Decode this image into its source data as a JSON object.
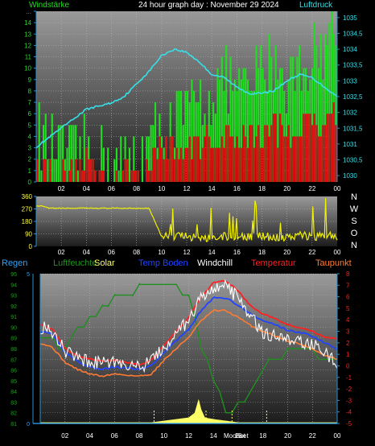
{
  "colors": {
    "background": "#000000",
    "plot_top": "#9a9a9a",
    "plot_bottom": "#1e1e1e",
    "grid": "#b4b4b4",
    "axis": "#2e8fcc",
    "wind_gust": "#22dd22",
    "wind_avg": "#dd1111",
    "pressure": "#36e0e8",
    "wind_dir": "#f0f000",
    "solar": "#ffff66",
    "temperature": "#ff2020",
    "dewpoint": "#ff7a33",
    "windchill": "#ffffff",
    "soil_temp": "#2244ff",
    "humidity": "#1f8f1f",
    "rain": "#2ea6ff"
  },
  "chart_data": [
    {
      "type": "line",
      "title": "24 hour graph day : November 29 2024",
      "ylabel_left": "Windstärke",
      "ylabel_right": "Luftdruck",
      "x_ticks": [
        "02",
        "04",
        "06",
        "08",
        "10",
        "12",
        "14",
        "16",
        "18",
        "20",
        "22",
        "00"
      ],
      "y_left_ticks": [
        "0",
        "1",
        "2",
        "3",
        "4",
        "5",
        "6",
        "7",
        "8",
        "9",
        "10",
        "11",
        "12",
        "13",
        "14",
        "..."
      ],
      "y_right_ticks": [
        "1030",
        "1030,5",
        "1031",
        "1031,5",
        "1032",
        "1032,5",
        "1033",
        "1033,5",
        "1034",
        "1034,5",
        "1035"
      ],
      "ylim_left": [
        0,
        15
      ],
      "ylim_right": [
        1029.8,
        1035.2
      ],
      "series": [
        {
          "key": "pressure",
          "x": [
            0,
            1,
            2,
            3,
            4,
            5,
            6,
            7,
            8,
            9,
            10,
            11,
            12,
            13,
            14,
            15,
            16,
            17,
            18,
            19,
            20,
            21,
            22,
            23,
            24
          ],
          "values": [
            1030.9,
            1031.2,
            1031.5,
            1031.8,
            1032.1,
            1032.2,
            1032.3,
            1032.5,
            1032.9,
            1033.3,
            1033.8,
            1034.0,
            1033.9,
            1033.6,
            1033.2,
            1033.1,
            1032.8,
            1032.6,
            1032.6,
            1032.7,
            1033.0,
            1033.2,
            1033.1,
            1032.8,
            1032.5
          ]
        },
        {
          "key": "wind_gust",
          "x": [
            0,
            1,
            2,
            3,
            4,
            5,
            6,
            7,
            8,
            9,
            10,
            11,
            12,
            13,
            14,
            15,
            16,
            17,
            18,
            19,
            20,
            21,
            22,
            23,
            24
          ],
          "values": [
            5,
            3,
            3,
            2,
            3,
            3,
            2,
            2,
            2,
            3,
            5,
            5,
            6,
            7,
            8,
            9,
            8,
            8,
            10,
            11,
            9,
            10,
            11,
            12,
            14
          ]
        },
        {
          "key": "wind_avg",
          "x": [
            0,
            1,
            2,
            3,
            4,
            5,
            6,
            7,
            8,
            9,
            10,
            11,
            12,
            13,
            14,
            15,
            16,
            17,
            18,
            19,
            20,
            21,
            22,
            23,
            24
          ],
          "values": [
            2,
            1,
            1,
            1,
            2,
            2,
            1,
            1,
            1,
            2,
            3,
            3,
            3,
            3,
            4,
            4,
            4,
            4,
            4,
            5,
            4,
            5,
            5,
            6,
            6
          ]
        }
      ]
    },
    {
      "type": "line",
      "ylabel_right": [
        "N",
        "W",
        "S",
        "O",
        "N"
      ],
      "x_ticks": [
        "02",
        "04",
        "06",
        "08",
        "10",
        "12",
        "14",
        "16",
        "18",
        "20",
        "22",
        "00"
      ],
      "y_ticks": [
        "0",
        "90",
        "180",
        "270",
        "360"
      ],
      "ylim": [
        0,
        360
      ],
      "series": [
        {
          "key": "wind_dir",
          "x": [
            0,
            0.5,
            1,
            2,
            3,
            4,
            5,
            6,
            7,
            8,
            9,
            10,
            11,
            12,
            13,
            14,
            15,
            16,
            17,
            18,
            19,
            20,
            21,
            22,
            23,
            24
          ],
          "values": [
            290,
            290,
            275,
            275,
            275,
            275,
            275,
            275,
            275,
            275,
            275,
            70,
            75,
            70,
            65,
            60,
            70,
            65,
            70,
            75,
            65,
            70,
            80,
            70,
            80,
            75
          ]
        }
      ]
    },
    {
      "type": "line",
      "legend": [
        "Regen",
        "Luftfeuchte",
        "Solar",
        "Temp Boden",
        "Windchill",
        "Temperatur",
        "Taupunkt"
      ],
      "x_ticks": [
        "02",
        "04",
        "06",
        "08",
        "10",
        "12",
        "14",
        "16",
        "18",
        "20",
        "22",
        "00"
      ],
      "x_annotations": [
        "Moonset",
        "Set"
      ],
      "y_left_ticks": [
        "81",
        "82",
        "83",
        "84",
        "85",
        "86",
        "87",
        "88",
        "89",
        "90",
        "91",
        "92",
        "93",
        "94",
        "95"
      ],
      "y_left2_ticks": [
        "0",
        "5"
      ],
      "y_right_ticks": [
        "-5",
        "-4",
        "-3",
        "-2",
        "-1",
        "0",
        "1",
        "2",
        "3",
        "4",
        "5",
        "6",
        "7",
        "8"
      ],
      "ylim_humidity": [
        81,
        95
      ],
      "ylim_temperature": [
        -5,
        8
      ],
      "series": [
        {
          "key": "humidity",
          "x": [
            0,
            1,
            2,
            3,
            4,
            5,
            6,
            7,
            8,
            9,
            10,
            11,
            12,
            13,
            14,
            15,
            16,
            17,
            18,
            19,
            20,
            21,
            22,
            23,
            24
          ],
          "values": [
            89,
            88.5,
            88,
            89.5,
            90.5,
            91.5,
            92.5,
            93,
            93.5,
            94,
            94,
            93.5,
            93,
            88,
            85,
            82,
            82.5,
            84,
            86,
            87,
            87.5,
            88,
            87.5,
            87,
            86.5
          ]
        },
        {
          "key": "temperature",
          "x": [
            0,
            1,
            2,
            3,
            4,
            5,
            6,
            7,
            8,
            9,
            10,
            11,
            12,
            13,
            14,
            15,
            16,
            17,
            18,
            19,
            20,
            21,
            22,
            23,
            24
          ],
          "values": [
            3.6,
            3.2,
            1.5,
            0.9,
            0.6,
            0.4,
            0.5,
            0.3,
            0.1,
            0.5,
            1.8,
            3.0,
            4.2,
            6.0,
            7.2,
            7.4,
            6.5,
            5.2,
            4.5,
            4.1,
            3.6,
            3.3,
            3.0,
            2.5,
            2.3
          ]
        },
        {
          "key": "windchill",
          "x": [
            0,
            1,
            2,
            3,
            4,
            5,
            6,
            7,
            8,
            9,
            10,
            11,
            12,
            13,
            14,
            15,
            16,
            17,
            18,
            19,
            20,
            21,
            22,
            23,
            24
          ],
          "values": [
            3.4,
            3.0,
            1.3,
            0.7,
            0.4,
            0.2,
            0.3,
            0.1,
            -0.1,
            0.3,
            1.6,
            2.8,
            4.0,
            5.8,
            6.9,
            6.8,
            5.9,
            4.2,
            3.0,
            2.6,
            2.3,
            2.1,
            1.9,
            1.2,
            0.3
          ]
        },
        {
          "key": "soil_temp",
          "x": [
            0,
            1,
            2,
            3,
            4,
            5,
            6,
            7,
            8,
            9,
            10,
            11,
            12,
            13,
            14,
            15,
            16,
            17,
            18,
            19,
            20,
            21,
            22,
            23,
            24
          ],
          "values": [
            3.0,
            2.7,
            1.2,
            0.4,
            -0.1,
            -0.3,
            -0.1,
            -0.2,
            -0.3,
            0.0,
            1.2,
            2.2,
            3.2,
            4.8,
            5.9,
            5.9,
            5.3,
            4.5,
            3.9,
            3.6,
            3.1,
            2.9,
            2.6,
            2.0,
            1.5
          ]
        },
        {
          "key": "dewpoint",
          "x": [
            0,
            1,
            2,
            3,
            4,
            5,
            6,
            7,
            8,
            9,
            10,
            11,
            12,
            13,
            14,
            15,
            16,
            17,
            18,
            19,
            20,
            21,
            22,
            23,
            24
          ],
          "values": [
            2.0,
            1.6,
            0.3,
            -0.3,
            -0.7,
            -0.9,
            -0.7,
            -0.8,
            -0.9,
            -0.7,
            0.5,
            1.5,
            2.5,
            3.9,
            4.8,
            4.8,
            4.2,
            3.5,
            3.0,
            2.6,
            2.2,
            1.9,
            1.5,
            0.9,
            0.6
          ]
        },
        {
          "key": "solar",
          "x": [
            0,
            9,
            10,
            11,
            12,
            12.5,
            12.8,
            13,
            13.3,
            14,
            15,
            16,
            24
          ],
          "values": [
            0,
            0,
            0.05,
            0.1,
            0.15,
            0.3,
            0.7,
            0.4,
            0.15,
            0.1,
            0.05,
            0,
            0
          ]
        },
        {
          "key": "rain",
          "x": [
            0,
            24
          ],
          "values": [
            0,
            0
          ]
        }
      ]
    }
  ]
}
